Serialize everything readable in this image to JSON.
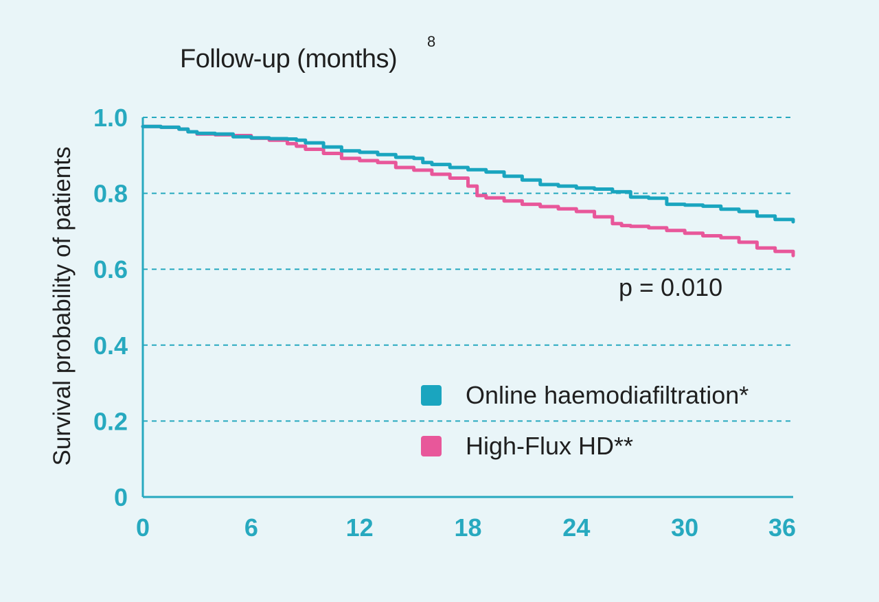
{
  "chart_data": {
    "type": "line",
    "title": "Follow-up (months)",
    "title_superscript": "8",
    "xlabel": "",
    "ylabel": "Survival probability of patients",
    "x_ticks": [
      "0",
      "6",
      "12",
      "18",
      "24",
      "30",
      "36"
    ],
    "y_ticks": [
      "0",
      "0.2",
      "0.4",
      "0.6",
      "0.8",
      "1.0"
    ],
    "xlim": [
      0,
      36
    ],
    "ylim": [
      0,
      1.0
    ],
    "grid": "horizontal-dashed",
    "legend_position": "bottom-right",
    "annotation": "p = 0.010",
    "colors": {
      "axis": "#27a9bf",
      "grid": "#27a9bf",
      "background": "#e9f5f8"
    },
    "series": [
      {
        "name": "Online haemodiafiltration*",
        "color": "#1aa5bf",
        "x": [
          0,
          1,
          2,
          2.5,
          3,
          4,
          5,
          6,
          7,
          8,
          8.5,
          9,
          10,
          11,
          12,
          13,
          14,
          15,
          15.5,
          16,
          17,
          18,
          19,
          20,
          21,
          22,
          23,
          24,
          25,
          26,
          27,
          28,
          29,
          30,
          31,
          32,
          33,
          34,
          35,
          36
        ],
        "y": [
          0.976,
          0.974,
          0.969,
          0.962,
          0.958,
          0.956,
          0.949,
          0.946,
          0.944,
          0.943,
          0.94,
          0.933,
          0.922,
          0.912,
          0.908,
          0.902,
          0.895,
          0.892,
          0.881,
          0.876,
          0.868,
          0.862,
          0.856,
          0.845,
          0.835,
          0.823,
          0.819,
          0.814,
          0.811,
          0.804,
          0.79,
          0.787,
          0.771,
          0.769,
          0.766,
          0.758,
          0.752,
          0.74,
          0.731,
          0.725
        ]
      },
      {
        "name": "High-Flux HD**",
        "color": "#e8579a",
        "x": [
          0,
          1,
          2,
          2.5,
          3,
          4,
          5,
          6,
          7,
          8,
          8.5,
          9,
          10,
          11,
          12,
          13,
          14,
          15,
          16,
          17,
          18,
          18.5,
          19,
          20,
          21,
          22,
          23,
          24,
          25,
          26,
          26.5,
          27,
          28,
          29,
          30,
          31,
          32,
          33,
          34,
          35,
          36
        ],
        "y": [
          0.976,
          0.974,
          0.969,
          0.962,
          0.956,
          0.954,
          0.952,
          0.945,
          0.94,
          0.931,
          0.924,
          0.916,
          0.905,
          0.892,
          0.886,
          0.881,
          0.868,
          0.861,
          0.85,
          0.84,
          0.819,
          0.794,
          0.788,
          0.78,
          0.771,
          0.765,
          0.759,
          0.752,
          0.738,
          0.72,
          0.715,
          0.713,
          0.709,
          0.702,
          0.695,
          0.688,
          0.683,
          0.671,
          0.656,
          0.647,
          0.636
        ]
      }
    ]
  }
}
